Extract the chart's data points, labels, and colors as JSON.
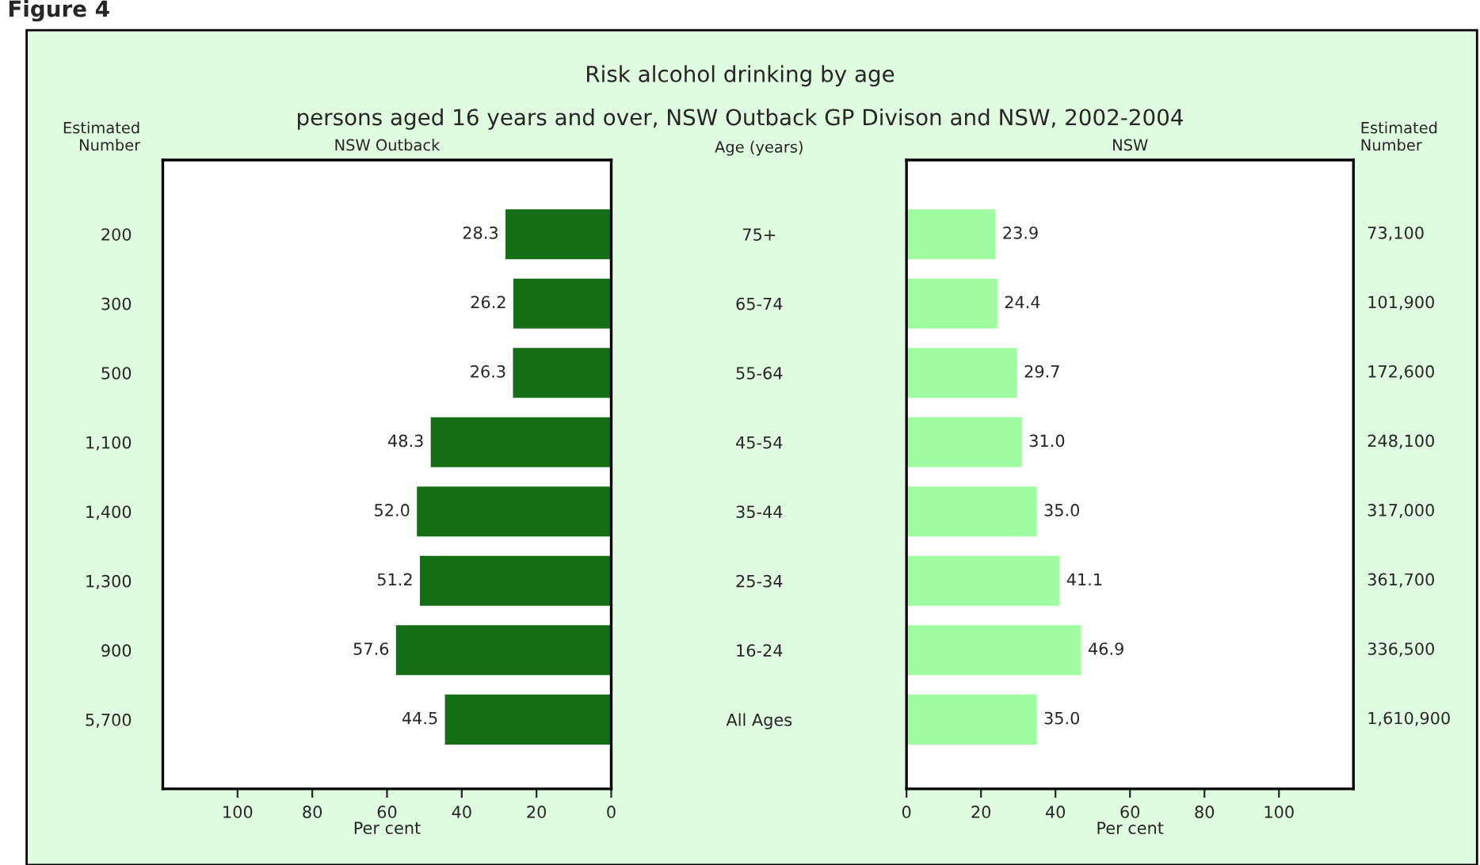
{
  "chart_data": [
    {
      "type": "bar",
      "orientation": "horizontal",
      "title": "Risk alcohol drinking by age",
      "subtitle": "persons aged 16 years and over, NSW Outback GP Divison and NSW, 2002-2004",
      "ylabel": "Estimated Number",
      "xlabel": "Per cent",
      "annotations": [
        "Figure 4",
        "NSW Outback"
      ],
      "categories": [
        "200",
        "300",
        "500",
        "1,100",
        "1,400",
        "1,300",
        "900",
        "5,700"
      ],
      "series": [
        {
          "color": "#156e15",
          "values": [
            28.3,
            26.2,
            26.3,
            48.3,
            52.0,
            51.2,
            57.6,
            44.5
          ],
          "value_labels": [
            "28.3",
            "26.2",
            "26.3",
            "48.3",
            "52.0",
            "51.2",
            "57.6",
            "44.5"
          ]
        }
      ],
      "xlim": [
        120,
        0
      ],
      "xticks": [
        100,
        80,
        60,
        40,
        20,
        0
      ],
      "grid": false,
      "legend": false
    },
    {
      "type": "bar",
      "orientation": "horizontal",
      "title": "NSW",
      "ylabel": "Age (years)",
      "y2label": "Estimated Number",
      "xlabel": "Per cent",
      "annotations": [
        "73,100",
        "101,900",
        "172,600",
        "248,100",
        "317,000",
        "361,700",
        "336,500",
        "1,610,900"
      ],
      "categories": [
        "75+",
        "65-74",
        "55-64",
        "45-54",
        "35-44",
        "25-34",
        "16-24",
        "All Ages"
      ],
      "series": [
        {
          "color": "#a0fca0",
          "values": [
            23.9,
            24.4,
            29.7,
            31.0,
            35.0,
            41.1,
            46.9,
            35.0
          ],
          "value_labels": [
            "23.9",
            "24.4",
            "29.7",
            "31.0",
            "35.0",
            "41.1",
            "46.9",
            "35.0"
          ]
        }
      ],
      "xlim": [
        0,
        120
      ],
      "xticks": [
        0,
        20,
        40,
        60,
        80,
        100
      ],
      "grid": false,
      "legend": false
    }
  ]
}
